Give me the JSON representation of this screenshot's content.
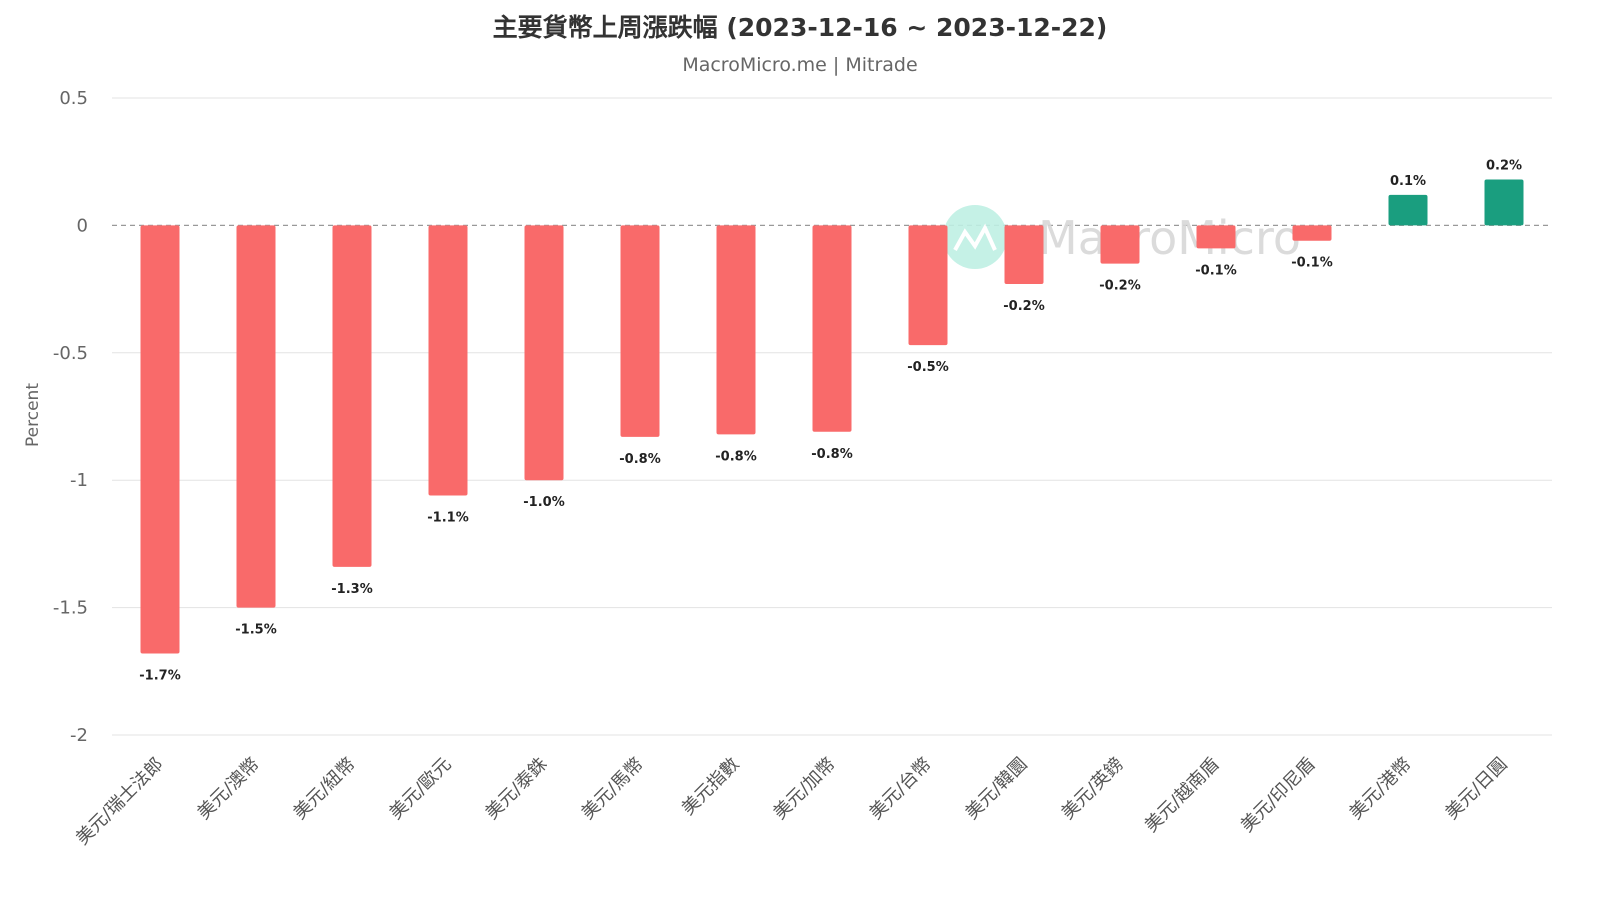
{
  "chart_data": {
    "type": "bar",
    "title": "主要貨幣上周漲跌幅 (2023-12-16 ~ 2023-12-22)",
    "subtitle": "MacroMicro.me | Mitrade",
    "ylabel": "Percent",
    "xlabel": "",
    "ylim": [
      -2,
      0.5
    ],
    "yticks": [
      0.5,
      0,
      -0.5,
      -1,
      -1.5,
      -2
    ],
    "ytick_labels": [
      "0.5",
      "0",
      "-0.5",
      "-1",
      "-1.5",
      "-2"
    ],
    "grid": true,
    "zero_line": "dashed",
    "categories": [
      "美元/瑞士法郎",
      "美元/澳幣",
      "美元/紐幣",
      "美元/歐元",
      "美元/泰銖",
      "美元/馬幣",
      "美元指數",
      "美元/加幣",
      "美元/台幣",
      "美元/韓圜",
      "美元/英鎊",
      "美元/越南盾",
      "美元/印尼盾",
      "美元/港幣",
      "美元/日圓"
    ],
    "values": [
      -1.68,
      -1.5,
      -1.34,
      -1.06,
      -1.0,
      -0.83,
      -0.82,
      -0.81,
      -0.47,
      -0.23,
      -0.15,
      -0.09,
      -0.06,
      0.12,
      0.18
    ],
    "data_labels": [
      "-1.7%",
      "-1.5%",
      "-1.3%",
      "-1.1%",
      "-1.0%",
      "-0.8%",
      "-0.8%",
      "-0.8%",
      "-0.5%",
      "-0.2%",
      "-0.2%",
      "-0.1%",
      "-0.1%",
      "0.1%",
      "0.2%"
    ],
    "colors": {
      "negative": "#f96a6a",
      "positive": "#1a9e7f"
    },
    "watermark": "MacroMicro"
  }
}
